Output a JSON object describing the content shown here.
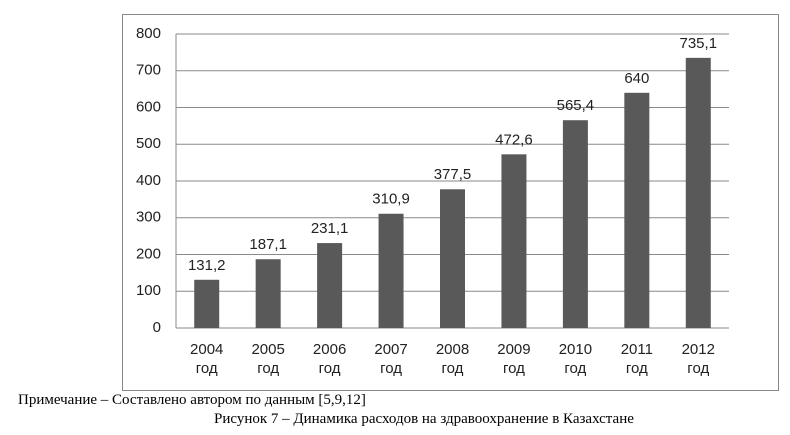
{
  "chart_data": {
    "type": "bar",
    "categories": [
      "2004 год",
      "2005 год",
      "2006 год",
      "2007 год",
      "2008 год",
      "2009 год",
      "2010 год",
      "2011 год",
      "2012 год"
    ],
    "values": [
      131.2,
      187.1,
      231.1,
      310.9,
      377.5,
      472.6,
      565.4,
      640,
      735.1
    ],
    "value_labels": [
      "131,2",
      "187,1",
      "231,1",
      "310,9",
      "377,5",
      "472,6",
      "565,4",
      "640",
      "735,1"
    ],
    "color": "#595959",
    "ylim": [
      0,
      800
    ],
    "yticks": [
      0,
      100,
      200,
      300,
      400,
      500,
      600,
      700,
      800
    ],
    "grid": true
  },
  "note": "Примечание – Составлено автором по данным [5,9,12]",
  "caption": "Рисунок 7 – Динамика расходов на здравоохранение в Казахстане"
}
